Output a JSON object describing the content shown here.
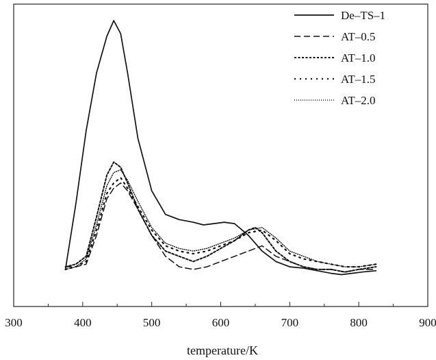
{
  "chart_data": {
    "type": "line",
    "xlabel": "temperature/K",
    "ylabel": "",
    "xlim": [
      300,
      900
    ],
    "ylim": [
      0,
      1
    ],
    "xticks": [
      300,
      400,
      500,
      600,
      700,
      800,
      900
    ],
    "yticks_visible": false,
    "grid": false,
    "legend_position": "top-right",
    "series": [
      {
        "name": "De–TS–1",
        "style": "solid",
        "x": [
          375,
          390,
          405,
          420,
          435,
          445,
          455,
          465,
          480,
          500,
          520,
          540,
          560,
          575,
          590,
          605,
          620,
          640,
          660,
          680,
          700,
          720,
          740,
          760,
          775,
          790,
          805,
          825
        ],
        "y": [
          0.05,
          0.3,
          0.58,
          0.8,
          0.94,
          1.0,
          0.95,
          0.8,
          0.55,
          0.35,
          0.26,
          0.24,
          0.23,
          0.22,
          0.225,
          0.23,
          0.225,
          0.18,
          0.12,
          0.08,
          0.06,
          0.055,
          0.045,
          0.035,
          0.03,
          0.035,
          0.04,
          0.045
        ]
      },
      {
        "name": "AT–0.5",
        "style": "dashed",
        "x": [
          375,
          390,
          405,
          420,
          435,
          445,
          455,
          465,
          480,
          500,
          520,
          540,
          560,
          580,
          600,
          620,
          640,
          660,
          680,
          700,
          720,
          740,
          760,
          780,
          800,
          825
        ],
        "y": [
          0.06,
          0.06,
          0.07,
          0.18,
          0.32,
          0.36,
          0.38,
          0.35,
          0.28,
          0.18,
          0.1,
          0.06,
          0.05,
          0.06,
          0.08,
          0.1,
          0.12,
          0.14,
          0.1,
          0.08,
          0.06,
          0.05,
          0.05,
          0.04,
          0.05,
          0.05
        ]
      },
      {
        "name": "AT–1.0",
        "style": "dotted",
        "x": [
          375,
          390,
          405,
          420,
          435,
          445,
          455,
          465,
          480,
          500,
          520,
          540,
          560,
          580,
          600,
          620,
          640,
          650,
          660,
          680,
          700,
          720,
          740,
          760,
          780,
          800,
          825
        ],
        "y": [
          0.06,
          0.07,
          0.1,
          0.25,
          0.41,
          0.46,
          0.44,
          0.38,
          0.28,
          0.18,
          0.12,
          0.1,
          0.08,
          0.1,
          0.13,
          0.16,
          0.2,
          0.21,
          0.19,
          0.12,
          0.08,
          0.06,
          0.05,
          0.05,
          0.04,
          0.05,
          0.06
        ]
      },
      {
        "name": "AT–1.5",
        "style": "dashdot",
        "x": [
          375,
          390,
          405,
          420,
          435,
          445,
          455,
          465,
          480,
          500,
          520,
          540,
          560,
          580,
          600,
          620,
          640,
          660,
          680,
          700,
          720,
          740,
          760,
          780,
          800,
          825
        ],
        "y": [
          0.05,
          0.06,
          0.08,
          0.2,
          0.34,
          0.38,
          0.4,
          0.36,
          0.29,
          0.2,
          0.14,
          0.12,
          0.11,
          0.12,
          0.14,
          0.16,
          0.19,
          0.2,
          0.16,
          0.11,
          0.09,
          0.08,
          0.07,
          0.06,
          0.06,
          0.07
        ]
      },
      {
        "name": "AT–2.0",
        "style": "finedot",
        "x": [
          375,
          390,
          405,
          420,
          435,
          445,
          455,
          465,
          480,
          500,
          520,
          540,
          560,
          580,
          600,
          620,
          640,
          660,
          680,
          700,
          720,
          740,
          760,
          780,
          800,
          825
        ],
        "y": [
          0.05,
          0.06,
          0.09,
          0.22,
          0.37,
          0.42,
          0.43,
          0.39,
          0.31,
          0.21,
          0.15,
          0.13,
          0.12,
          0.13,
          0.15,
          0.17,
          0.2,
          0.21,
          0.17,
          0.12,
          0.1,
          0.08,
          0.07,
          0.06,
          0.06,
          0.07
        ]
      }
    ]
  }
}
